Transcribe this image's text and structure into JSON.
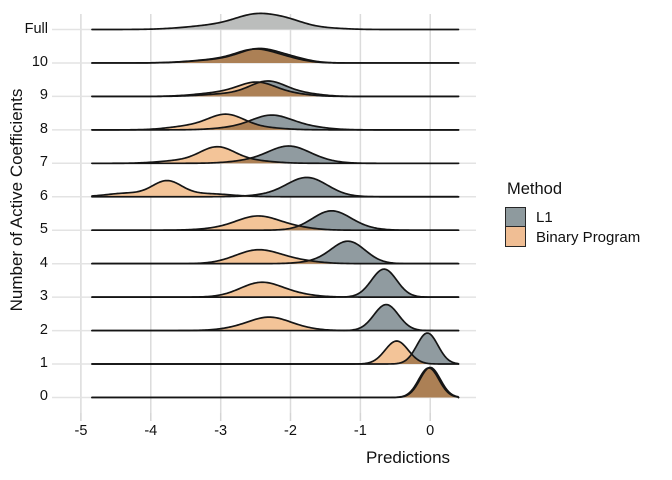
{
  "axes": {
    "y_title": "Number of Active Coefficients",
    "x_title": "Predictions",
    "y_categories": [
      "Full",
      "10",
      "9",
      "8",
      "7",
      "6",
      "5",
      "4",
      "3",
      "2",
      "1",
      "0"
    ],
    "x_tick_labels": [
      "-5",
      "-4",
      "-3",
      "-2",
      "-1",
      "0"
    ],
    "x_tick_values": [
      -5,
      -4,
      -3,
      -2,
      -1,
      0
    ],
    "x_range": [
      -5,
      0
    ],
    "grid": "on"
  },
  "legend": {
    "title": "Method",
    "position": "right",
    "items": [
      {
        "label": "L1",
        "color": "#8E9A9E"
      },
      {
        "label": "Binary Program",
        "color": "#F0BE94"
      }
    ]
  },
  "colors": {
    "l1_fill": "#909BA0",
    "bp_fill": "#F3C498",
    "overlap_fill": "#AC8055",
    "full_fill": "#BBBDBC",
    "curve_stroke": "#151515",
    "grid_v": "#DBDBDB",
    "grid_h": "#E3E3E3",
    "tick": "#D4D4D4",
    "text": "#1A1A1A",
    "background": "#FFFFFF"
  },
  "chart_data": {
    "type": "ridgeline",
    "title": "",
    "xlabel": "Predictions",
    "ylabel": "Number of Active Coefficients",
    "x_domain_drawn": [
      -4.84,
      0.41
    ],
    "component_format": "[mean, sd, peak_height_px]",
    "rows": [
      {
        "label": "Full",
        "series": [
          {
            "method": "Full",
            "color_key": "full_fill",
            "components": [
              [
                -2.47,
                0.3,
                12.5
              ],
              [
                -2.02,
                0.25,
                6.5
              ],
              [
                -3.0,
                0.45,
                4.5
              ],
              [
                -1.55,
                0.3,
                1.5
              ]
            ]
          }
        ]
      },
      {
        "label": "10",
        "series": [
          {
            "method": "L1",
            "color_key": "l1_fill",
            "components": [
              [
                -2.45,
                0.27,
                12.0
              ],
              [
                -2.0,
                0.25,
                4.5
              ],
              [
                -2.95,
                0.4,
                3.5
              ]
            ]
          },
          {
            "method": "Binary Program",
            "color_key": "bp_fill",
            "components": [
              [
                -2.5,
                0.27,
                11.5
              ],
              [
                -2.06,
                0.25,
                4.0
              ],
              [
                -3.0,
                0.4,
                3.5
              ]
            ]
          }
        ]
      },
      {
        "label": "9",
        "series": [
          {
            "method": "L1",
            "color_key": "l1_fill",
            "components": [
              [
                -2.32,
                0.26,
                14.5
              ],
              [
                -1.8,
                0.25,
                2.5
              ],
              [
                -2.9,
                0.35,
                2.5
              ]
            ]
          },
          {
            "method": "Binary Program",
            "color_key": "bp_fill",
            "components": [
              [
                -2.47,
                0.27,
                13.0
              ],
              [
                -3.0,
                0.35,
                3.5
              ],
              [
                -1.95,
                0.25,
                2.0
              ]
            ]
          }
        ]
      },
      {
        "label": "8",
        "series": [
          {
            "method": "L1",
            "color_key": "l1_fill",
            "components": [
              [
                -2.28,
                0.28,
                13.5
              ],
              [
                -1.8,
                0.3,
                3.0
              ],
              [
                -2.8,
                0.3,
                2.0
              ]
            ]
          },
          {
            "method": "Binary Program",
            "color_key": "bp_fill",
            "components": [
              [
                -2.92,
                0.26,
                14.5
              ],
              [
                -3.45,
                0.3,
                3.5
              ],
              [
                -2.4,
                0.3,
                2.0
              ]
            ]
          }
        ]
      },
      {
        "label": "7",
        "series": [
          {
            "method": "L1",
            "color_key": "l1_fill",
            "components": [
              [
                -2.02,
                0.29,
                16.5
              ],
              [
                -2.55,
                0.3,
                2.5
              ],
              [
                -1.55,
                0.25,
                1.5
              ]
            ]
          },
          {
            "method": "Binary Program",
            "color_key": "bp_fill",
            "components": [
              [
                -3.05,
                0.25,
                15.5
              ],
              [
                -3.6,
                0.3,
                2.5
              ],
              [
                -2.55,
                0.3,
                2.5
              ]
            ]
          }
        ]
      },
      {
        "label": "6",
        "series": [
          {
            "method": "L1",
            "color_key": "l1_fill",
            "components": [
              [
                -1.76,
                0.29,
                19.0
              ],
              [
                -2.3,
                0.3,
                1.5
              ]
            ]
          },
          {
            "method": "Binary Program",
            "color_key": "bp_fill",
            "components": [
              [
                -3.77,
                0.21,
                15.0
              ],
              [
                -4.35,
                0.28,
                3.5
              ],
              [
                -3.2,
                0.35,
                3.0
              ]
            ]
          }
        ]
      },
      {
        "label": "5",
        "series": [
          {
            "method": "L1",
            "color_key": "l1_fill",
            "components": [
              [
                -1.42,
                0.27,
                19.0
              ],
              [
                -1.0,
                0.25,
                1.5
              ]
            ]
          },
          {
            "method": "Binary Program",
            "color_key": "bp_fill",
            "components": [
              [
                -2.47,
                0.3,
                13.5
              ],
              [
                -1.95,
                0.28,
                2.5
              ],
              [
                -3.0,
                0.3,
                1.5
              ]
            ]
          }
        ]
      },
      {
        "label": "4",
        "series": [
          {
            "method": "L1",
            "color_key": "l1_fill",
            "components": [
              [
                -1.17,
                0.24,
                22.0
              ],
              [
                -1.6,
                0.25,
                2.0
              ]
            ]
          },
          {
            "method": "Binary Program",
            "color_key": "bp_fill",
            "components": [
              [
                -2.47,
                0.32,
                13.5
              ],
              [
                -1.9,
                0.3,
                2.5
              ]
            ]
          }
        ]
      },
      {
        "label": "3",
        "series": [
          {
            "method": "L1",
            "color_key": "l1_fill",
            "components": [
              [
                -0.66,
                0.18,
                28.0
              ]
            ]
          },
          {
            "method": "Binary Program",
            "color_key": "bp_fill",
            "components": [
              [
                -2.42,
                0.3,
                14.5
              ],
              [
                -1.9,
                0.28,
                2.0
              ]
            ]
          }
        ]
      },
      {
        "label": "2",
        "series": [
          {
            "method": "L1",
            "color_key": "l1_fill",
            "components": [
              [
                -0.63,
                0.175,
                26.0
              ]
            ]
          },
          {
            "method": "Binary Program",
            "color_key": "bp_fill",
            "components": [
              [
                -2.28,
                0.27,
                11.0
              ],
              [
                -2.62,
                0.3,
                3.5
              ],
              [
                -1.88,
                0.25,
                2.0
              ]
            ]
          }
        ]
      },
      {
        "label": "1",
        "series": [
          {
            "method": "L1",
            "color_key": "l1_fill",
            "components": [
              [
                -0.04,
                0.15,
                31.0
              ]
            ]
          },
          {
            "method": "Binary Program",
            "color_key": "bp_fill",
            "components": [
              [
                -0.48,
                0.165,
                23.0
              ]
            ]
          }
        ]
      },
      {
        "label": "0",
        "series": [
          {
            "method": "L1",
            "color_key": "l1_fill",
            "components": [
              [
                0.0,
                0.145,
                30.0
              ]
            ]
          },
          {
            "method": "Binary Program",
            "color_key": "bp_fill",
            "components": [
              [
                -0.02,
                0.145,
                29.5
              ]
            ]
          }
        ]
      }
    ]
  }
}
